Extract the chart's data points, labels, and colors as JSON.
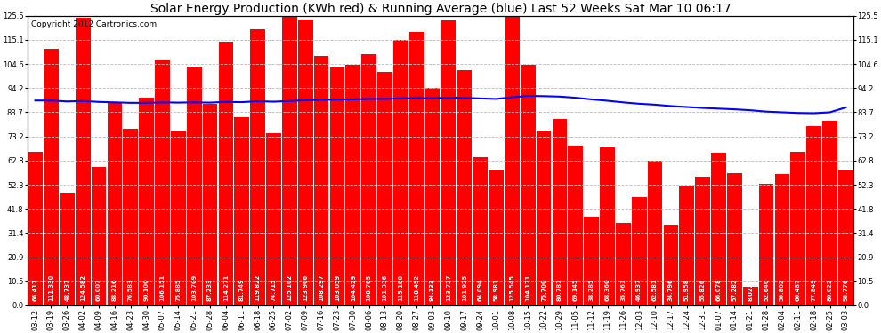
{
  "title": "Solar Energy Production (KWh red) & Running Average (blue) Last 52 Weeks Sat Mar 10 06:17",
  "copyright": "Copyright 2012 Cartronics.com",
  "bar_color": "#ff0000",
  "avg_line_color": "#0000ff",
  "background_color": "#ffffff",
  "grid_color": "#bbbbbb",
  "categories": [
    "03-12",
    "03-19",
    "03-26",
    "04-02",
    "04-09",
    "04-16",
    "04-23",
    "04-30",
    "05-07",
    "05-14",
    "05-21",
    "05-28",
    "06-04",
    "06-11",
    "06-18",
    "06-25",
    "07-02",
    "07-09",
    "07-16",
    "07-23",
    "07-30",
    "08-06",
    "08-13",
    "08-20",
    "08-27",
    "09-03",
    "09-10",
    "09-17",
    "09-24",
    "10-01",
    "10-08",
    "10-15",
    "10-22",
    "10-29",
    "11-05",
    "11-12",
    "11-19",
    "11-26",
    "12-03",
    "12-10",
    "12-17",
    "12-24",
    "12-31",
    "01-07",
    "01-14",
    "01-21",
    "01-28",
    "02-04",
    "02-11",
    "02-18",
    "02-25",
    "03-03"
  ],
  "values": [
    66.417,
    111.33,
    48.737,
    124.582,
    60.007,
    88.216,
    76.583,
    90.1,
    106.151,
    75.885,
    103.709,
    87.233,
    114.271,
    81.749,
    119.822,
    74.715,
    125.102,
    123.906,
    108.297,
    103.059,
    104.429,
    108.785,
    101.336,
    115.18,
    118.452,
    94.133,
    123.727,
    101.925,
    64.094,
    58.981,
    125.545,
    104.171,
    75.7,
    80.781,
    69.145,
    38.285,
    68.36,
    35.761,
    46.937,
    62.581,
    34.796,
    51.958,
    55.826,
    66.078,
    57.282,
    8.022,
    52.64,
    56.802,
    66.487,
    77.849,
    80.022,
    58.776
  ],
  "running_avg": [
    88.8,
    88.8,
    88.4,
    88.6,
    88.2,
    88.0,
    87.8,
    87.8,
    88.0,
    87.9,
    88.0,
    87.9,
    88.2,
    88.1,
    88.5,
    88.3,
    88.6,
    88.9,
    89.1,
    89.2,
    89.3,
    89.5,
    89.5,
    89.7,
    89.9,
    89.8,
    90.0,
    90.0,
    89.7,
    89.5,
    90.2,
    90.8,
    90.7,
    90.5,
    90.0,
    89.3,
    88.7,
    88.0,
    87.4,
    87.0,
    86.4,
    86.0,
    85.6,
    85.3,
    85.0,
    84.6,
    84.0,
    83.7,
    83.4,
    83.3,
    83.7,
    85.8
  ],
  "yticks": [
    0.0,
    10.5,
    20.9,
    31.4,
    41.8,
    52.3,
    62.8,
    73.2,
    83.7,
    94.2,
    104.6,
    115.1,
    125.5
  ],
  "ymax": 125.5,
  "ymin": 0.0,
  "title_fontsize": 10,
  "tick_fontsize": 6,
  "label_fontsize": 4.8,
  "copyright_fontsize": 6.5
}
